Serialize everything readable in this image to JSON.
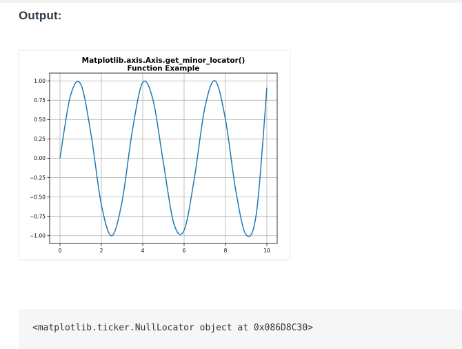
{
  "heading": "Output:",
  "chart_data": {
    "type": "line",
    "title_line1": "Matplotlib.axis.Axis.get_minor_locator()",
    "title_line2": "Function Example",
    "xlabel": "",
    "ylabel": "",
    "xlim": [
      -0.5,
      10.5
    ],
    "ylim": [
      -1.1,
      1.1
    ],
    "x_ticks": [
      0,
      2,
      4,
      6,
      8,
      10
    ],
    "x_tick_labels": [
      "0",
      "2",
      "4",
      "6",
      "8",
      "10"
    ],
    "y_ticks": [
      1.0,
      0.75,
      0.5,
      0.25,
      0.0,
      -0.25,
      -0.5,
      -0.75,
      -1.0
    ],
    "y_tick_labels": [
      "1.00",
      "0.75",
      "0.50",
      "0.25",
      "0.00",
      "−0.25",
      "−0.50",
      "−0.75",
      "−1.00"
    ],
    "grid": true,
    "series": [
      {
        "color": "#1f77b4",
        "x": [
          0.0,
          0.5,
          1.0,
          1.5,
          2.0,
          2.5,
          3.0,
          3.5,
          4.0,
          4.5,
          5.0,
          5.5,
          6.0,
          6.5,
          7.0,
          7.5,
          8.0,
          8.5,
          9.0,
          9.5,
          10.0
        ],
        "y": [
          0.0,
          0.8,
          0.96,
          0.31,
          -0.6,
          -1.0,
          -0.56,
          0.36,
          0.98,
          0.75,
          -0.06,
          -0.84,
          -0.93,
          -0.25,
          0.65,
          1.0,
          0.5,
          -0.42,
          -0.99,
          -0.7,
          0.91
        ]
      }
    ]
  },
  "console_output": "<matplotlib.ticker.NullLocator object at 0x086D8C30>"
}
